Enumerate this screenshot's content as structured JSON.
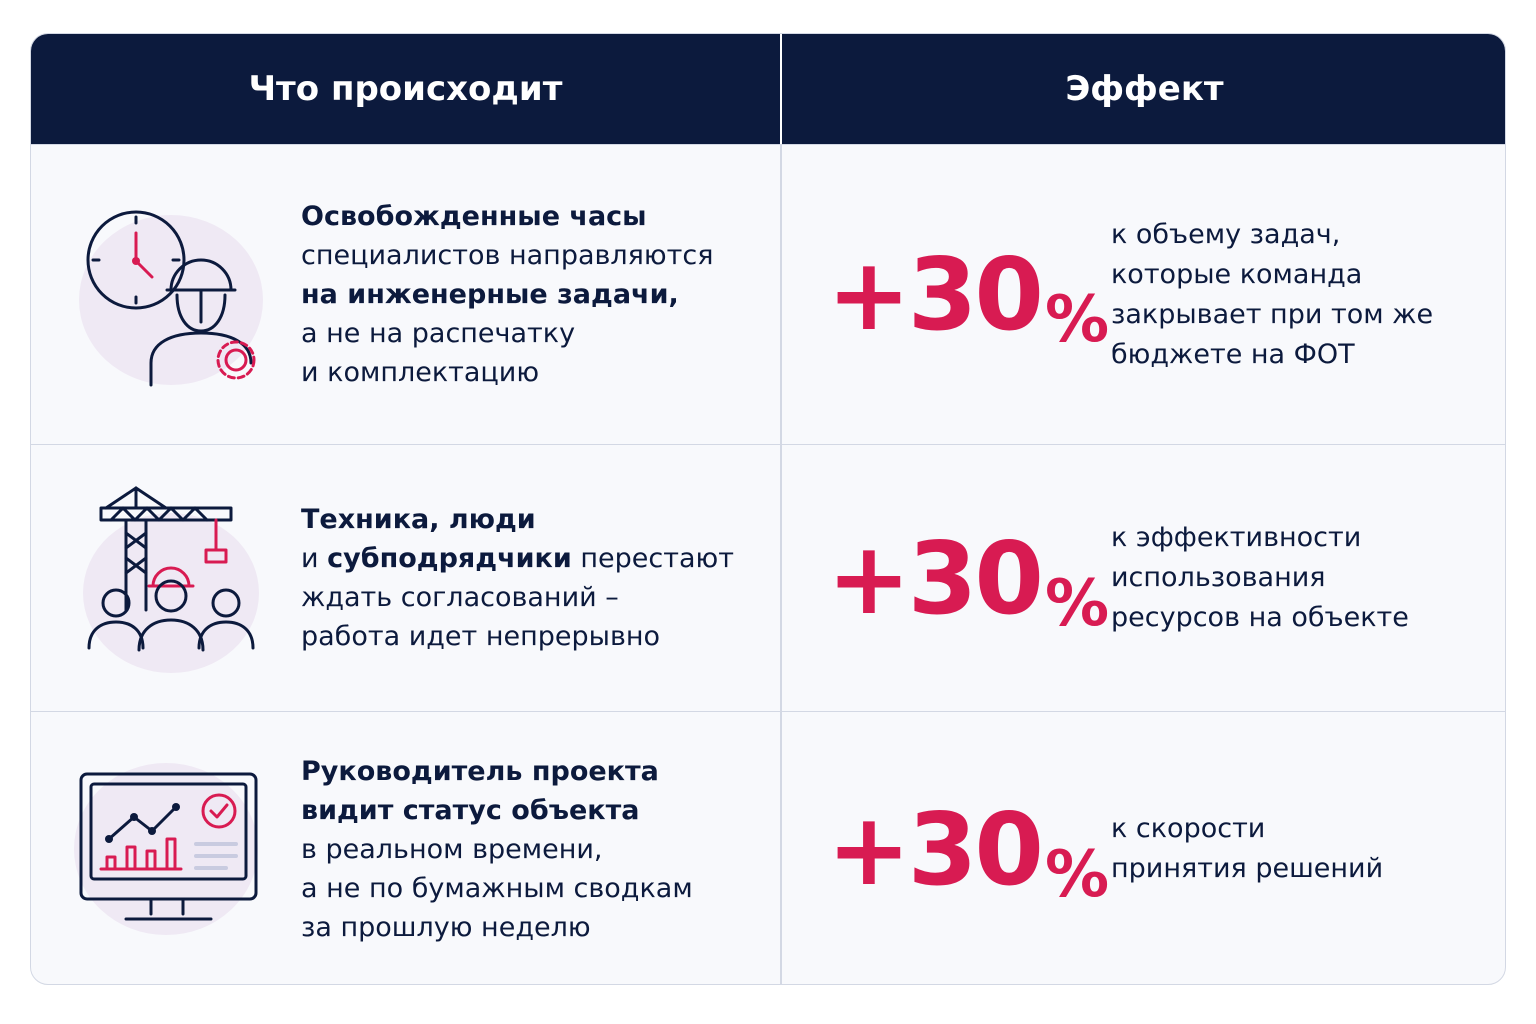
{
  "header": {
    "columns": [
      "Что происходит",
      "Эффект"
    ]
  },
  "rows": [
    {
      "description": [
        [
          {
            "text": "Освобожденные часы",
            "bold": true
          }
        ],
        [
          {
            "text": "специалистов направляются",
            "bold": false
          }
        ],
        [
          {
            "text": "на инженерные задачи,",
            "bold": true
          }
        ],
        [
          {
            "text": "а не на распечатку",
            "bold": false
          }
        ],
        [
          {
            "text": "и комплектацию",
            "bold": false
          }
        ]
      ],
      "effect": {
        "value": "+30%",
        "text": [
          "к объему задач,",
          "которые команда",
          "закрывает при том же",
          "бюджете на ФОТ"
        ]
      }
    },
    {
      "description": [
        [
          {
            "text": "Техника, люди",
            "bold": true
          }
        ],
        [
          {
            "text": "и ",
            "bold": false
          },
          {
            "text": "субподрядчики",
            "bold": true
          },
          {
            "text": " перестают",
            "bold": false
          }
        ],
        [
          {
            "text": "ждать согласований –",
            "bold": false
          }
        ],
        [
          {
            "text": "работа идет непрерывно",
            "bold": false
          }
        ]
      ],
      "effect": {
        "value": "+30%",
        "text": [
          "к эффективности",
          "использования",
          "ресурсов на объекте"
        ]
      }
    },
    {
      "description": [
        [
          {
            "text": "Руководитель проекта",
            "bold": true
          }
        ],
        [
          {
            "text": "видит статус объекта",
            "bold": true
          }
        ],
        [
          {
            "text": "в реальном времени,",
            "bold": false
          }
        ],
        [
          {
            "text": "а не по бумажным сводкам",
            "bold": false
          }
        ],
        [
          {
            "text": "за прошлую неделю",
            "bold": false
          }
        ]
      ],
      "effect": {
        "value": "+30%",
        "text": [
          "к скорости",
          "принятия решений"
        ]
      }
    }
  ]
}
